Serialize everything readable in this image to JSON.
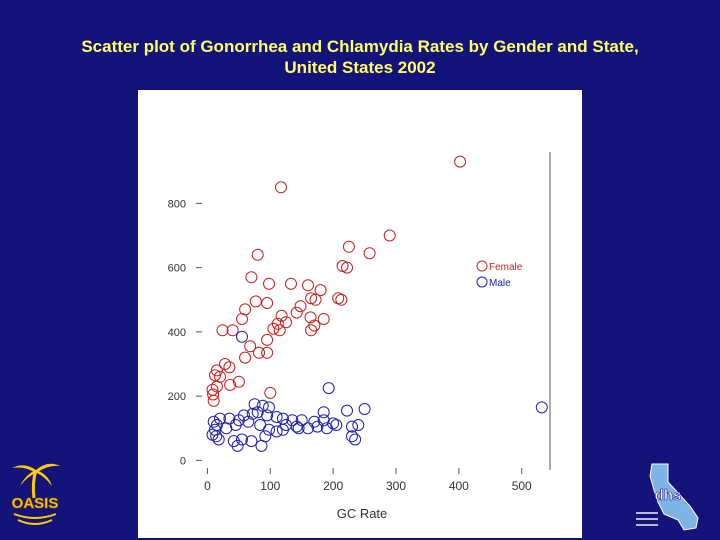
{
  "slide": {
    "title_line1": "Scatter plot of Gonorrhea and Chlamydia Rates by Gender and State,",
    "title_line2": "United States 2002"
  },
  "logos": {
    "left_text": "OASIS",
    "right_text": "dhs"
  },
  "colors": {
    "background": "#14137a",
    "title": "#ffff66",
    "female": "#c82020",
    "male": "#2020b0",
    "axis": "#555555"
  },
  "chart_data": {
    "type": "scatter",
    "title": "",
    "xlabel": "GC Rate",
    "ylabel": "",
    "xlim": [
      -15,
      545
    ],
    "ylim": [
      -30,
      960
    ],
    "xticks": [
      0,
      100,
      200,
      300,
      400,
      500
    ],
    "yticks": [
      0,
      200,
      400,
      600,
      800
    ],
    "legend": {
      "position": "right",
      "entries": [
        "Female",
        "Male"
      ]
    },
    "series": [
      {
        "name": "Female",
        "marker": "open-circle",
        "points": [
          [
            402,
            930
          ],
          [
            117,
            850
          ],
          [
            290,
            700
          ],
          [
            225,
            665
          ],
          [
            258,
            645
          ],
          [
            80,
            640
          ],
          [
            215,
            605
          ],
          [
            222,
            600
          ],
          [
            70,
            570
          ],
          [
            98,
            550
          ],
          [
            133,
            550
          ],
          [
            160,
            545
          ],
          [
            180,
            530
          ],
          [
            165,
            505
          ],
          [
            172,
            500
          ],
          [
            208,
            505
          ],
          [
            213,
            500
          ],
          [
            95,
            490
          ],
          [
            77,
            495
          ],
          [
            60,
            470
          ],
          [
            148,
            480
          ],
          [
            142,
            460
          ],
          [
            118,
            450
          ],
          [
            55,
            440
          ],
          [
            112,
            425
          ],
          [
            125,
            430
          ],
          [
            164,
            445
          ],
          [
            185,
            440
          ],
          [
            170,
            420
          ],
          [
            105,
            410
          ],
          [
            115,
            405
          ],
          [
            24,
            405
          ],
          [
            40,
            405
          ],
          [
            165,
            405
          ],
          [
            95,
            375
          ],
          [
            68,
            355
          ],
          [
            82,
            335
          ],
          [
            95,
            335
          ],
          [
            60,
            320
          ],
          [
            28,
            300
          ],
          [
            35,
            290
          ],
          [
            15,
            280
          ],
          [
            12,
            265
          ],
          [
            20,
            260
          ],
          [
            50,
            245
          ],
          [
            36,
            235
          ],
          [
            15,
            230
          ],
          [
            8,
            220
          ],
          [
            9,
            205
          ],
          [
            10,
            185
          ],
          [
            100,
            210
          ]
        ]
      },
      {
        "name": "Male",
        "marker": "open-circle",
        "points": [
          [
            532,
            165
          ],
          [
            193,
            225
          ],
          [
            250,
            160
          ],
          [
            222,
            155
          ],
          [
            185,
            150
          ],
          [
            75,
            175
          ],
          [
            88,
            170
          ],
          [
            98,
            165
          ],
          [
            80,
            150
          ],
          [
            72,
            145
          ],
          [
            95,
            140
          ],
          [
            58,
            140
          ],
          [
            110,
            135
          ],
          [
            120,
            130
          ],
          [
            135,
            125
          ],
          [
            150,
            125
          ],
          [
            170,
            120
          ],
          [
            185,
            125
          ],
          [
            200,
            115
          ],
          [
            205,
            110
          ],
          [
            230,
            105
          ],
          [
            240,
            110
          ],
          [
            125,
            110
          ],
          [
            142,
            105
          ],
          [
            160,
            100
          ],
          [
            175,
            105
          ],
          [
            190,
            100
          ],
          [
            120,
            95
          ],
          [
            98,
            95
          ],
          [
            84,
            110
          ],
          [
            65,
            120
          ],
          [
            50,
            125
          ],
          [
            35,
            130
          ],
          [
            20,
            130
          ],
          [
            10,
            120
          ],
          [
            15,
            110
          ],
          [
            45,
            110
          ],
          [
            30,
            100
          ],
          [
            12,
            95
          ],
          [
            8,
            80
          ],
          [
            14,
            75
          ],
          [
            18,
            65
          ],
          [
            42,
            60
          ],
          [
            55,
            65
          ],
          [
            70,
            60
          ],
          [
            92,
            75
          ],
          [
            110,
            90
          ],
          [
            145,
            100
          ],
          [
            230,
            75
          ],
          [
            235,
            65
          ],
          [
            48,
            45
          ],
          [
            86,
            45
          ],
          [
            55,
            385
          ]
        ]
      }
    ]
  }
}
